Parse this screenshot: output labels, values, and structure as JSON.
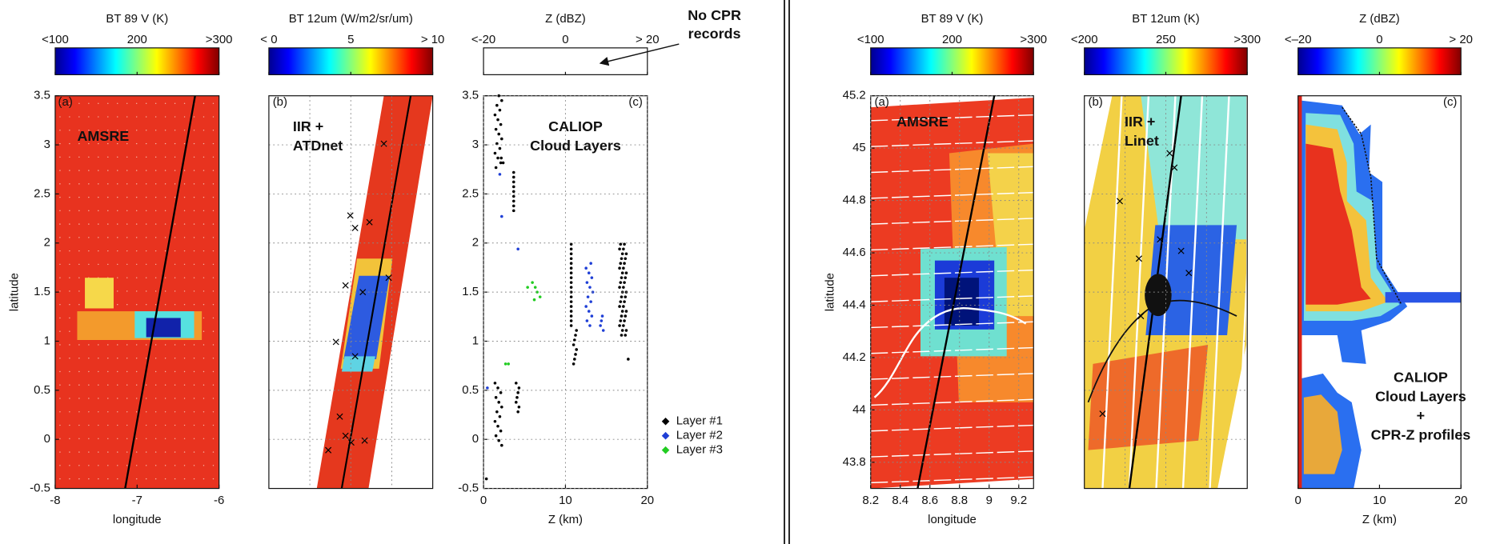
{
  "chart_data": [
    {
      "type": "heatmap",
      "title": "BT 89 V (K)",
      "colormap": "jet",
      "clim": [
        100,
        300
      ],
      "cticks": [
        {
          "value": 100,
          "label": "<100"
        },
        200,
        {
          "value": 300,
          "label": ">300"
        }
      ],
      "panel": "(a)",
      "annotation": [
        "AMSRE"
      ],
      "xlim": [
        -8,
        -6
      ],
      "xticks": [
        -8,
        -7,
        -6
      ],
      "xlabel": "longitude",
      "ylim": [
        -0.5,
        3.5
      ],
      "yticks": [
        -0.5,
        0,
        0.5,
        1,
        1.5,
        2,
        2.5,
        3,
        3.5
      ],
      "ylabel": "latitude",
      "grid": false
    },
    {
      "type": "heatmap",
      "title": "BT 12um (W/m2/sr/um)",
      "colormap": "jet",
      "clim": [
        0,
        10
      ],
      "cticks": [
        {
          "value": 0,
          "label": "<  0"
        },
        5,
        {
          "value": 10,
          "label": "> 10"
        }
      ],
      "panel": "(b)",
      "annotation": [
        "IIR +",
        "ATDnet"
      ]
    },
    {
      "type": "profile",
      "title": "Z (dBZ)",
      "colormap": "none",
      "clim": [
        -20,
        20
      ],
      "cticks": [
        {
          "value": -20,
          "label": "<-20"
        },
        0,
        {
          "value": 20,
          "label": "> 20"
        }
      ],
      "panel": "(c)",
      "annotation": [
        "CALIOP",
        "Cloud Layers"
      ],
      "note": [
        "No CPR",
        "records"
      ],
      "xlim": [
        0,
        20
      ],
      "xticks": [
        0,
        10,
        20
      ],
      "xlabel": "Z (km)",
      "ylim": [
        -0.5,
        3.5
      ],
      "yticks": [
        -0.5,
        0,
        0.5,
        1,
        1.5,
        2,
        2.5,
        3,
        3.5
      ],
      "grid": true,
      "legend": [
        {
          "name": "Layer #1",
          "color": "#000000"
        },
        {
          "name": "Layer #2",
          "color": "#1f3fd6"
        },
        {
          "name": "Layer #3",
          "color": "#22cc22"
        }
      ]
    },
    {
      "type": "heatmap",
      "title": "BT 89 V (K)",
      "colormap": "jet",
      "clim": [
        100,
        300
      ],
      "cticks": [
        {
          "value": 100,
          "label": "<100"
        },
        200,
        {
          "value": 300,
          "label": ">300"
        }
      ],
      "panel": "(a)",
      "annotation": [
        "AMSRE"
      ],
      "xlim": [
        8.2,
        9.3
      ],
      "xticks": [
        8.2,
        8.4,
        8.6,
        8.8,
        9,
        9.2
      ],
      "xlabel": "longitude",
      "ylim": [
        43.7,
        45.2
      ],
      "yticks": [
        43.8,
        44,
        44.2,
        44.4,
        44.6,
        44.8,
        45,
        45.2
      ],
      "ylabel": "latitude",
      "grid": true
    },
    {
      "type": "heatmap",
      "title": "BT 12um (K)",
      "colormap": "jet",
      "clim": [
        200,
        300
      ],
      "cticks": [
        {
          "value": 200,
          "label": "<200"
        },
        250,
        {
          "value": 300,
          "label": ">300"
        }
      ],
      "panel": "(b)",
      "annotation": [
        "IIR +",
        "Linet"
      ]
    },
    {
      "type": "profile",
      "title": "Z (dBZ)",
      "colormap": "jet",
      "clim": [
        -20,
        20
      ],
      "cticks": [
        {
          "value": -20,
          "label": "<–20"
        },
        0,
        {
          "value": 20,
          "label": "> 20"
        }
      ],
      "panel": "(c)",
      "annotation": [
        "CALIOP",
        "Cloud Layers",
        "+",
        "CPR-Z profiles"
      ],
      "xlim": [
        0,
        20
      ],
      "xticks": [
        0,
        10,
        20
      ],
      "xlabel": "Z (km)"
    }
  ]
}
